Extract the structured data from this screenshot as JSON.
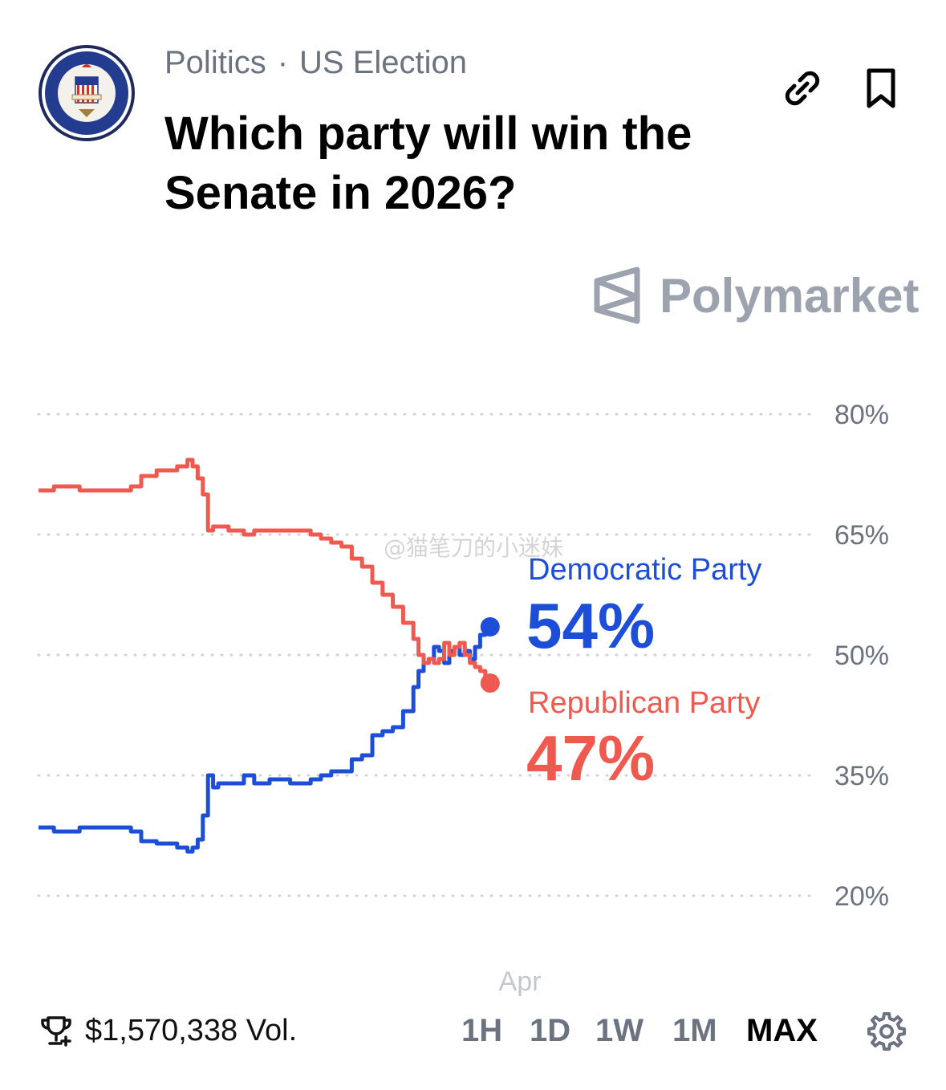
{
  "header": {
    "category": "Politics",
    "separator": "·",
    "subcategory": "US Election",
    "title": "Which party will win the Senate in 2026?",
    "icons": [
      "us-senate-seal",
      "link-icon",
      "bookmark-icon"
    ]
  },
  "brand": {
    "name": "Polymarket",
    "color": "#9ca3af"
  },
  "watermark": "@猫笔刀的小迷妹",
  "chart_data": {
    "type": "line",
    "y_ticks": [
      "80%",
      "65%",
      "50%",
      "35%",
      "20%"
    ],
    "y_tick_values": [
      80,
      65,
      50,
      35,
      20
    ],
    "ylim": [
      20,
      80
    ],
    "grid": "dotted horizontal",
    "x_tick_labels": [
      "Apr"
    ],
    "x_tick_positions": [
      0.85
    ],
    "series": [
      {
        "name": "Democratic Party",
        "label": "54%",
        "color": "#1d4ed8",
        "x": [
          0,
          0.03,
          0.05,
          0.08,
          0.1,
          0.12,
          0.15,
          0.18,
          0.2,
          0.23,
          0.25,
          0.27,
          0.29,
          0.3,
          0.31,
          0.32,
          0.33,
          0.34,
          0.35,
          0.37,
          0.39,
          0.4,
          0.42,
          0.45,
          0.47,
          0.49,
          0.51,
          0.53,
          0.55,
          0.57,
          0.59,
          0.61,
          0.63,
          0.65,
          0.67,
          0.69,
          0.71,
          0.73,
          0.74,
          0.75,
          0.76,
          0.77,
          0.78,
          0.79,
          0.8,
          0.81,
          0.82,
          0.83,
          0.84,
          0.85,
          0.86,
          0.87
        ],
        "y": [
          28.5,
          28,
          28,
          28.5,
          28.5,
          28.5,
          28.5,
          28,
          26.8,
          26.5,
          26.5,
          26,
          25.5,
          26,
          27,
          30,
          35,
          33.5,
          34,
          34,
          34,
          35,
          34,
          34.5,
          34.5,
          34,
          34,
          34.5,
          35,
          35.5,
          35.5,
          37,
          37.5,
          40,
          40.5,
          41,
          43,
          46,
          48,
          49,
          49.5,
          51,
          50.5,
          49,
          50.5,
          51,
          50,
          50.5,
          49.5,
          51,
          52.5,
          53.5
        ]
      },
      {
        "name": "Republican Party",
        "label": "47%",
        "color": "#ef5a50",
        "x": [
          0,
          0.03,
          0.05,
          0.08,
          0.1,
          0.12,
          0.15,
          0.18,
          0.2,
          0.23,
          0.25,
          0.27,
          0.29,
          0.3,
          0.31,
          0.32,
          0.33,
          0.34,
          0.35,
          0.37,
          0.39,
          0.4,
          0.42,
          0.45,
          0.47,
          0.49,
          0.51,
          0.53,
          0.55,
          0.57,
          0.59,
          0.61,
          0.63,
          0.65,
          0.67,
          0.69,
          0.71,
          0.73,
          0.74,
          0.75,
          0.76,
          0.77,
          0.78,
          0.79,
          0.8,
          0.81,
          0.82,
          0.83,
          0.84,
          0.85,
          0.86,
          0.87
        ],
        "y": [
          70.5,
          71,
          71,
          70.5,
          70.5,
          70.5,
          70.5,
          71,
          72.3,
          73,
          73,
          73.5,
          74.3,
          73.5,
          72,
          70,
          65.5,
          66,
          66,
          65.5,
          65.5,
          65,
          65.5,
          65.5,
          65.5,
          65.5,
          65.5,
          65,
          64.5,
          64,
          63.5,
          62,
          61,
          59,
          57.5,
          56,
          54,
          52,
          50,
          49,
          49.5,
          49,
          49.5,
          51.5,
          50,
          51,
          51.5,
          50,
          49,
          48.5,
          48,
          46.5
        ]
      }
    ]
  },
  "footer": {
    "volume": "$1,570,338 Vol.",
    "ranges": [
      "1H",
      "1D",
      "1W",
      "1M",
      "MAX"
    ],
    "active_range": "MAX"
  }
}
